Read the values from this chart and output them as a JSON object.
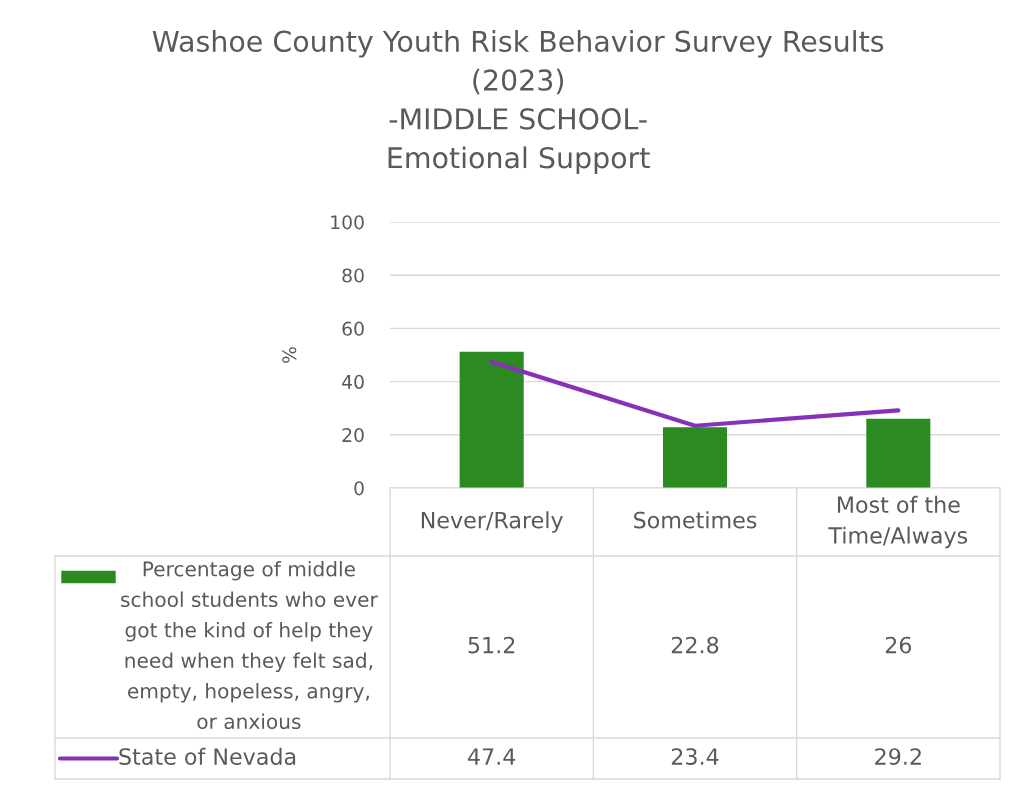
{
  "chart_data": {
    "type": "bar",
    "title": "Washoe County Youth Risk Behavior Survey Results\n(2023)\n-MIDDLE SCHOOL-\nEmotional Support",
    "ylabel": "%",
    "categories": [
      "Never/Rarely",
      "Sometimes",
      "Most of the Time/Always"
    ],
    "series": [
      {
        "name": "Percentage of middle school students who ever got the kind of help they need when they felt sad, empty, hopeless, angry, or anxious",
        "color": "#2c8a22",
        "values": [
          51.2,
          22.8,
          26
        ]
      },
      {
        "name": "State of Nevada",
        "type": "line",
        "color": "#8631b8",
        "values": [
          47.4,
          23.4,
          29.2
        ]
      }
    ],
    "ylim": [
      0,
      100
    ],
    "yticks": [
      0,
      20,
      40,
      60,
      80,
      100
    ],
    "grid": "y",
    "legend": "bottom",
    "data_labels": true
  }
}
